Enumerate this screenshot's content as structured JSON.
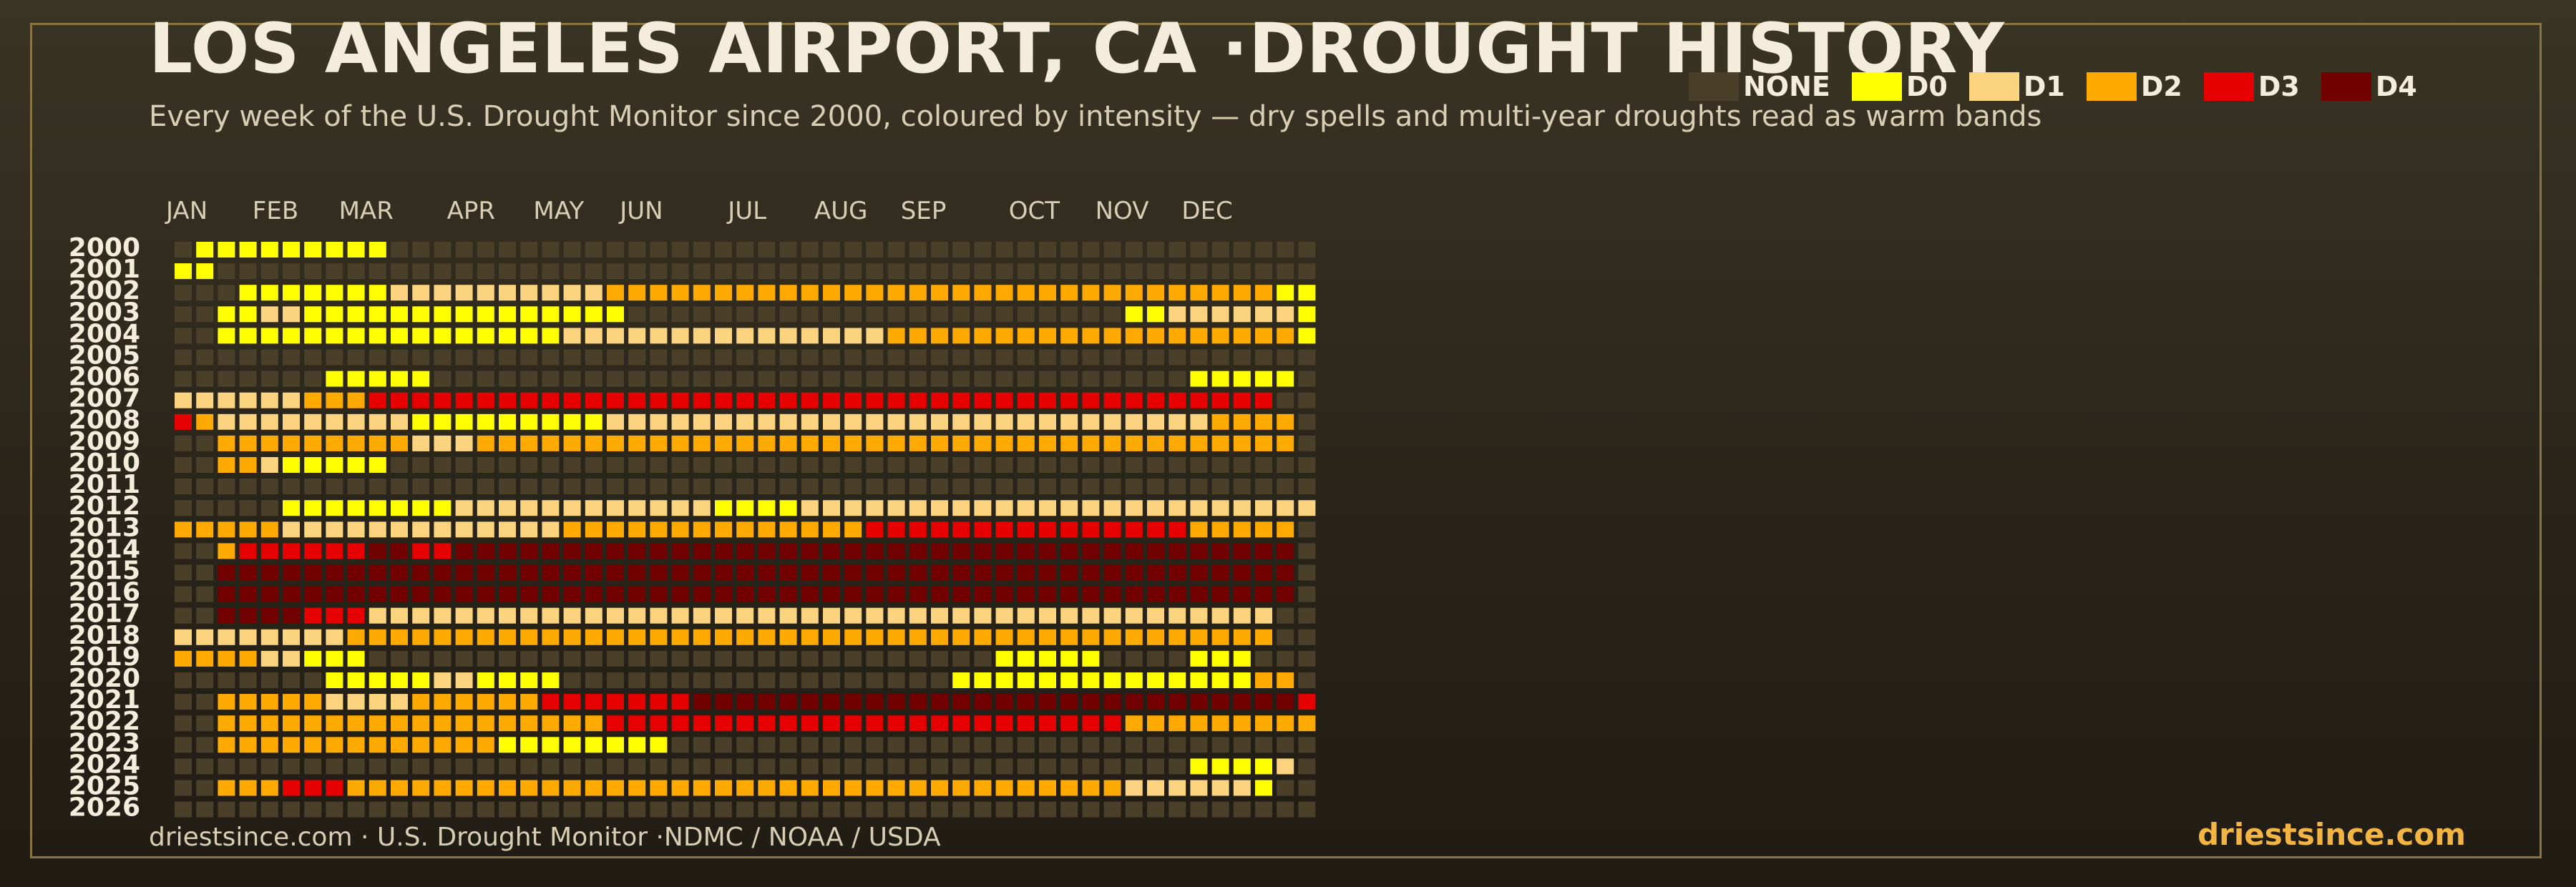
{
  "header": {
    "title": "LOS ANGELES AIRPORT, CA ·DROUGHT HISTORY",
    "subtitle": "Every week of the U.S. Drought Monitor since 2000, coloured by intensity — dry spells and multi-year droughts read as warm bands"
  },
  "legend": [
    {
      "label": "NONE",
      "color": "#4a3f28"
    },
    {
      "label": "D0",
      "color": "#ffff00"
    },
    {
      "label": "D1",
      "color": "#fcd37f"
    },
    {
      "label": "D2",
      "color": "#ffaa00"
    },
    {
      "label": "D3",
      "color": "#e60000"
    },
    {
      "label": "D4",
      "color": "#730000"
    }
  ],
  "footer": {
    "source": "driestsince.com  · U.S. Drought Monitor ·NDMC / NOAA / USDA",
    "brand": "driestsince.com"
  },
  "chart_data": {
    "type": "heatmap",
    "x_labels": [
      "JAN",
      "FEB",
      "MAR",
      "APR",
      "MAY",
      "JUN",
      "JUL",
      "AUG",
      "SEP",
      "OCT",
      "NOV",
      "DEC"
    ],
    "x_label_weeks": [
      0,
      4,
      8,
      13,
      17,
      21,
      26,
      30,
      34,
      39,
      43,
      47
    ],
    "y_labels": [
      "2000",
      "2001",
      "2002",
      "2003",
      "2004",
      "2005",
      "2006",
      "2007",
      "2008",
      "2009",
      "2010",
      "2011",
      "2012",
      "2013",
      "2014",
      "2015",
      "2016",
      "2017",
      "2018",
      "2019",
      "2020",
      "2021",
      "2022",
      "2023",
      "2024",
      "2025",
      "2026"
    ],
    "weeks_per_year": 53,
    "levels": [
      "NONE",
      "D0",
      "D1",
      "D2",
      "D3",
      "D4"
    ],
    "encoding": "one character per week: . = NONE (or no data), 0 = D0, 1 = D1, 2 = D2, 3 = D3, 4 = D4",
    "rows": [
      ".000000000...........................................",
      "00...................................................",
      "...00000001111111111222222222222222222222222222222200",
      "..0011000000000000000.......................001111110",
      "..000000000000000011111111111111122222222222222222220",
      ".....................................................",
      ".......00000...................................00000",
      "111111222333333333333333333333333333333333333333333..",
      "3211111111100000000011111111111111111111111111112222.",
      "..22222222211122222222222222222222222222222222222222.",
      "..22100000...........................................",
      ".....................................................",
      ".....000000001111111111110000111111111111111111111111",
      "2222211111111111112222222222222233333333333333322222.",
      "..23333334433444444444444444444444444444444444444444.",
      "..44444444444444444444444444444444444444444444444444.",
      "..44444444444444444444444444444444444444444444444444.",
      "..4444333111111111111111111111111111111111111111111..",
      "111111112222222222222222222222222222222222222222222..",
      "222211000.............................00000....000..",
      ".......00000110000..................0000000000000022.",
      "..222221111222222333333344444444444444444444444444443",
      "..222222222222222222333333333333333333333333222222222",
      "..222222222222200000000..............................",
      "...............................................00001",
      "..2223332222222222222222222222222222222222221111110.",
      "....................................................."
    ]
  }
}
